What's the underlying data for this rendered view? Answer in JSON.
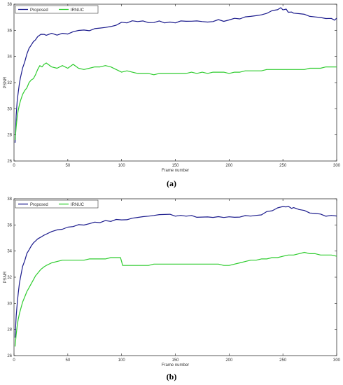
{
  "chart_data": [
    {
      "type": "line",
      "panel_label": "(a)",
      "xlabel": "Frame number",
      "ylabel": "PSNR",
      "xlim": [
        0,
        300
      ],
      "ylim": [
        26,
        38
      ],
      "xticks": [
        0,
        50,
        100,
        150,
        200,
        250,
        300
      ],
      "yticks": [
        26,
        28,
        30,
        32,
        34,
        36,
        38
      ],
      "grid": false,
      "legend_position": "top-left",
      "series": [
        {
          "name": "Proposed",
          "color": "#1a1a8c",
          "x": [
            1,
            2,
            3,
            4,
            5,
            6,
            8,
            10,
            12,
            14,
            16,
            18,
            20,
            22,
            25,
            28,
            30,
            35,
            40,
            45,
            50,
            55,
            60,
            65,
            70,
            75,
            80,
            85,
            90,
            95,
            100,
            105,
            110,
            115,
            120,
            125,
            130,
            135,
            140,
            145,
            150,
            155,
            160,
            165,
            170,
            175,
            180,
            185,
            190,
            195,
            200,
            205,
            210,
            215,
            220,
            225,
            230,
            235,
            240,
            245,
            248,
            250,
            253,
            255,
            258,
            260,
            265,
            270,
            275,
            280,
            285,
            290,
            295,
            298,
            300
          ],
          "y": [
            27.4,
            29.5,
            30.6,
            31.3,
            31.9,
            32.4,
            33.1,
            33.6,
            34.2,
            34.6,
            34.9,
            35.1,
            35.3,
            35.5,
            35.7,
            35.7,
            35.6,
            35.8,
            35.6,
            35.8,
            35.7,
            35.9,
            36.0,
            36.0,
            36.0,
            36.1,
            36.2,
            36.2,
            36.3,
            36.4,
            36.6,
            36.6,
            36.7,
            36.7,
            36.7,
            36.6,
            36.6,
            36.7,
            36.6,
            36.6,
            36.6,
            36.7,
            36.7,
            36.7,
            36.7,
            36.7,
            36.6,
            36.7,
            36.8,
            36.7,
            36.8,
            36.9,
            36.9,
            37.0,
            37.1,
            37.1,
            37.2,
            37.3,
            37.5,
            37.6,
            37.7,
            37.6,
            37.6,
            37.4,
            37.4,
            37.3,
            37.3,
            37.2,
            37.1,
            37.0,
            37.0,
            36.9,
            36.9,
            36.8,
            36.9
          ]
        },
        {
          "name": "IRNUC",
          "color": "#2ecc2e",
          "x": [
            1,
            2,
            3,
            4,
            5,
            6,
            8,
            10,
            12,
            14,
            16,
            18,
            20,
            22,
            24,
            26,
            28,
            30,
            35,
            40,
            45,
            50,
            55,
            60,
            65,
            70,
            75,
            80,
            85,
            90,
            95,
            100,
            105,
            110,
            115,
            120,
            125,
            130,
            135,
            140,
            145,
            150,
            155,
            160,
            165,
            170,
            175,
            180,
            185,
            190,
            195,
            200,
            205,
            210,
            215,
            220,
            225,
            230,
            235,
            240,
            245,
            250,
            255,
            260,
            265,
            270,
            275,
            280,
            285,
            290,
            295,
            300
          ],
          "y": [
            27.6,
            28.6,
            29.4,
            29.9,
            30.3,
            30.6,
            31.1,
            31.4,
            31.6,
            32.0,
            32.2,
            32.3,
            32.6,
            33.0,
            33.3,
            33.2,
            33.4,
            33.5,
            33.2,
            33.1,
            33.3,
            33.1,
            33.4,
            33.1,
            33.0,
            33.1,
            33.2,
            33.2,
            33.3,
            33.2,
            33.0,
            32.8,
            32.9,
            32.8,
            32.7,
            32.7,
            32.7,
            32.6,
            32.7,
            32.7,
            32.7,
            32.7,
            32.7,
            32.7,
            32.8,
            32.7,
            32.8,
            32.7,
            32.8,
            32.8,
            32.8,
            32.7,
            32.8,
            32.8,
            32.9,
            32.9,
            32.9,
            32.9,
            33.0,
            33.0,
            33.0,
            33.0,
            33.0,
            33.0,
            33.0,
            33.0,
            33.1,
            33.1,
            33.1,
            33.2,
            33.2,
            33.2
          ]
        }
      ]
    },
    {
      "type": "line",
      "panel_label": "(b)",
      "xlabel": "Frame number",
      "ylabel": "PSNR",
      "xlim": [
        0,
        300
      ],
      "ylim": [
        26,
        38
      ],
      "xticks": [
        0,
        50,
        100,
        150,
        200,
        250,
        300
      ],
      "yticks": [
        26,
        28,
        30,
        32,
        34,
        36,
        38
      ],
      "grid": false,
      "legend_position": "top-left",
      "series": [
        {
          "name": "Proposed",
          "color": "#1a1a8c",
          "x": [
            1,
            2,
            3,
            4,
            5,
            6,
            8,
            10,
            12,
            14,
            16,
            18,
            20,
            22,
            25,
            28,
            30,
            35,
            40,
            45,
            50,
            55,
            60,
            65,
            70,
            75,
            80,
            85,
            90,
            95,
            100,
            105,
            110,
            115,
            120,
            125,
            130,
            135,
            140,
            145,
            150,
            155,
            160,
            165,
            170,
            175,
            180,
            185,
            190,
            195,
            200,
            205,
            210,
            215,
            220,
            225,
            230,
            235,
            240,
            245,
            250,
            253,
            255,
            258,
            260,
            265,
            270,
            275,
            280,
            285,
            290,
            295,
            300
          ],
          "y": [
            27.4,
            29.0,
            30.0,
            30.8,
            31.5,
            32.0,
            32.8,
            33.3,
            33.8,
            34.1,
            34.4,
            34.6,
            34.8,
            34.9,
            35.1,
            35.2,
            35.3,
            35.5,
            35.6,
            35.7,
            35.8,
            35.9,
            36.0,
            36.0,
            36.1,
            36.2,
            36.2,
            36.3,
            36.3,
            36.4,
            36.4,
            36.4,
            36.5,
            36.6,
            36.6,
            36.7,
            36.7,
            36.8,
            36.8,
            36.8,
            36.7,
            36.7,
            36.7,
            36.7,
            36.6,
            36.6,
            36.6,
            36.6,
            36.6,
            36.6,
            36.6,
            36.6,
            36.6,
            36.7,
            36.7,
            36.7,
            36.8,
            37.0,
            37.1,
            37.3,
            37.4,
            37.4,
            37.4,
            37.3,
            37.3,
            37.2,
            37.1,
            36.9,
            36.9,
            36.8,
            36.7,
            36.7,
            36.7
          ]
        },
        {
          "name": "IRNUC",
          "color": "#2ecc2e",
          "x": [
            1,
            2,
            3,
            4,
            5,
            6,
            8,
            10,
            12,
            14,
            16,
            18,
            20,
            22,
            25,
            28,
            30,
            35,
            40,
            45,
            50,
            55,
            60,
            65,
            70,
            75,
            80,
            85,
            90,
            95,
            99,
            100,
            101,
            105,
            110,
            115,
            120,
            125,
            130,
            135,
            140,
            145,
            150,
            155,
            160,
            165,
            170,
            175,
            180,
            185,
            190,
            195,
            200,
            205,
            210,
            215,
            220,
            225,
            230,
            235,
            240,
            245,
            250,
            255,
            260,
            265,
            270,
            275,
            280,
            285,
            290,
            295,
            300
          ],
          "y": [
            26.7,
            27.6,
            28.3,
            28.8,
            29.2,
            29.5,
            30.1,
            30.5,
            30.9,
            31.2,
            31.5,
            31.8,
            32.1,
            32.3,
            32.6,
            32.8,
            32.9,
            33.1,
            33.2,
            33.3,
            33.3,
            33.3,
            33.3,
            33.3,
            33.4,
            33.4,
            33.4,
            33.4,
            33.5,
            33.5,
            33.5,
            33.2,
            32.9,
            32.9,
            32.9,
            32.9,
            32.9,
            32.9,
            33.0,
            33.0,
            33.0,
            33.0,
            33.0,
            33.0,
            33.0,
            33.0,
            33.0,
            33.0,
            33.0,
            33.0,
            33.0,
            32.9,
            32.9,
            33.0,
            33.1,
            33.2,
            33.3,
            33.3,
            33.4,
            33.4,
            33.5,
            33.5,
            33.6,
            33.7,
            33.7,
            33.8,
            33.9,
            33.8,
            33.8,
            33.7,
            33.7,
            33.7,
            33.6
          ]
        }
      ]
    }
  ]
}
